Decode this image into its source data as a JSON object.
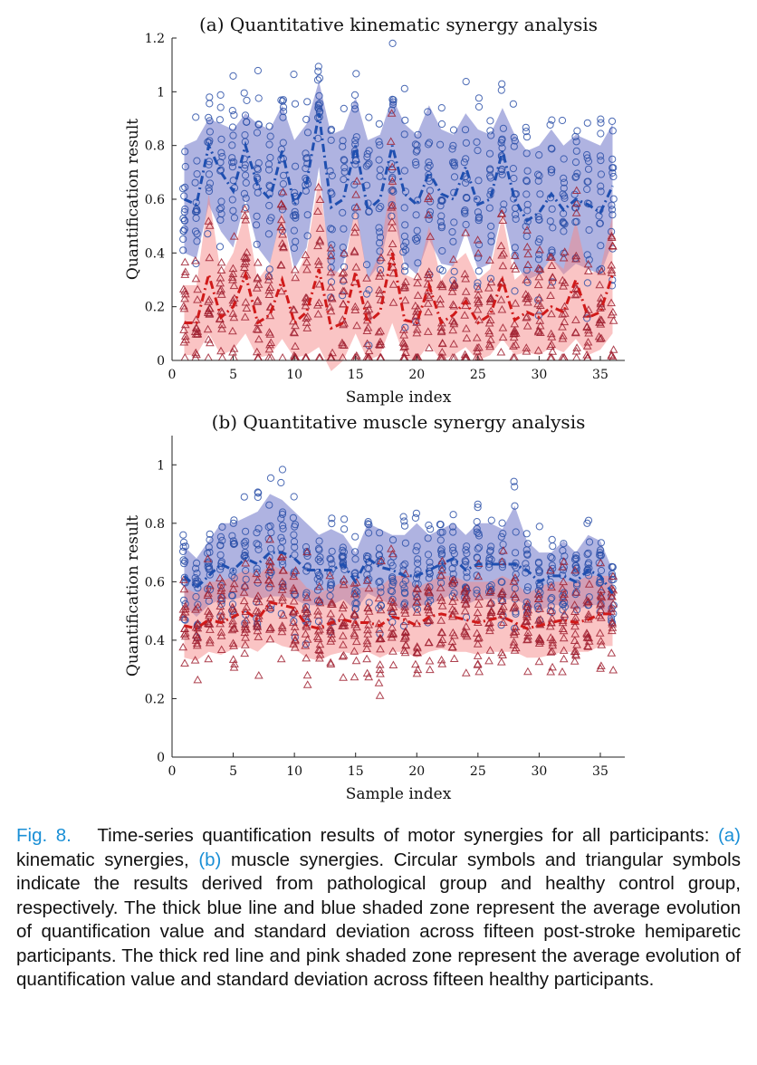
{
  "chart_data": [
    {
      "type": "scatter",
      "panel": "(a)",
      "title": "(a) Quantitative kinematic synergy analysis",
      "xlabel": "Sample index",
      "ylabel": "Quantification result",
      "xlim": [
        0,
        37
      ],
      "ylim": [
        0,
        1.2
      ],
      "xticks": [
        0,
        5,
        10,
        15,
        20,
        25,
        30,
        35
      ],
      "yticks": [
        0,
        0.2,
        0.4,
        0.6,
        0.8,
        1,
        1.2
      ],
      "ytick_labels": [
        "0",
        "0.2",
        "0.4",
        "0.6",
        "0.8",
        "1",
        "1.2"
      ],
      "x": [
        1,
        2,
        3,
        4,
        5,
        6,
        7,
        8,
        9,
        10,
        11,
        12,
        13,
        14,
        15,
        16,
        17,
        18,
        19,
        20,
        21,
        22,
        23,
        24,
        25,
        26,
        27,
        28,
        29,
        30,
        31,
        32,
        33,
        34,
        35,
        36
      ],
      "series": [
        {
          "marker": "circle",
          "color": "#2b50a8",
          "band_color": "#6e74c8",
          "mean": [
            0.6,
            0.58,
            0.8,
            0.7,
            0.63,
            0.8,
            0.65,
            0.6,
            0.78,
            0.58,
            0.66,
            0.92,
            0.57,
            0.6,
            0.8,
            0.56,
            0.6,
            0.8,
            0.62,
            0.58,
            0.7,
            0.62,
            0.6,
            0.72,
            0.58,
            0.6,
            0.78,
            0.6,
            0.52,
            0.55,
            0.62,
            0.56,
            0.6,
            0.58,
            0.55,
            0.65
          ],
          "std_lower": [
            0.4,
            0.38,
            0.58,
            0.48,
            0.42,
            0.6,
            0.42,
            0.36,
            0.55,
            0.34,
            0.42,
            0.72,
            0.3,
            0.36,
            0.56,
            0.3,
            0.36,
            0.56,
            0.36,
            0.32,
            0.45,
            0.36,
            0.35,
            0.48,
            0.34,
            0.36,
            0.56,
            0.36,
            0.3,
            0.32,
            0.38,
            0.32,
            0.36,
            0.34,
            0.32,
            0.44
          ],
          "std_upper": [
            0.8,
            0.82,
            0.9,
            0.88,
            0.86,
            0.92,
            0.88,
            0.86,
            0.95,
            0.82,
            0.88,
            1.04,
            0.84,
            0.86,
            0.98,
            0.82,
            0.84,
            0.98,
            0.88,
            0.84,
            0.95,
            0.86,
            0.84,
            0.92,
            0.86,
            0.84,
            0.94,
            0.84,
            0.78,
            0.8,
            0.86,
            0.8,
            0.84,
            0.82,
            0.8,
            0.88
          ]
        },
        {
          "marker": "triangle",
          "color": "#a02030",
          "band_color": "#f58a8a",
          "mean": [
            0.14,
            0.14,
            0.32,
            0.16,
            0.2,
            0.32,
            0.14,
            0.17,
            0.3,
            0.14,
            0.18,
            0.34,
            0.12,
            0.14,
            0.33,
            0.14,
            0.18,
            0.4,
            0.15,
            0.14,
            0.28,
            0.14,
            0.17,
            0.22,
            0.14,
            0.17,
            0.3,
            0.15,
            0.18,
            0.16,
            0.2,
            0.18,
            0.3,
            0.16,
            0.18,
            0.32
          ],
          "std_lower": [
            0.02,
            0.02,
            0.1,
            0.02,
            0.04,
            0.1,
            0.01,
            0.02,
            0.08,
            0.01,
            0.02,
            0.05,
            -0.04,
            0.0,
            0.1,
            0.0,
            0.02,
            0.14,
            0.01,
            0.0,
            0.06,
            0.0,
            0.02,
            0.05,
            0.0,
            0.02,
            0.08,
            0.02,
            0.03,
            0.02,
            0.05,
            0.03,
            0.08,
            0.02,
            0.04,
            0.1
          ],
          "std_upper": [
            0.28,
            0.28,
            0.62,
            0.32,
            0.4,
            0.56,
            0.3,
            0.36,
            0.56,
            0.3,
            0.4,
            0.68,
            0.34,
            0.32,
            0.58,
            0.3,
            0.4,
            0.7,
            0.32,
            0.3,
            0.5,
            0.3,
            0.36,
            0.4,
            0.3,
            0.34,
            0.54,
            0.3,
            0.34,
            0.32,
            0.38,
            0.34,
            0.52,
            0.32,
            0.34,
            0.54
          ]
        }
      ]
    },
    {
      "type": "scatter",
      "panel": "(b)",
      "title": "(b) Quantitative muscle synergy analysis",
      "xlabel": "Sample index",
      "ylabel": "Quantification result",
      "xlim": [
        0,
        37
      ],
      "ylim": [
        0,
        1.1
      ],
      "xticks": [
        0,
        5,
        10,
        15,
        20,
        25,
        30,
        35
      ],
      "yticks": [
        0,
        0.2,
        0.4,
        0.6,
        0.8,
        1
      ],
      "ytick_labels": [
        "0",
        "0.2",
        "0.4",
        "0.6",
        "0.8",
        "1"
      ],
      "x": [
        1,
        2,
        3,
        4,
        5,
        6,
        7,
        8,
        9,
        10,
        11,
        12,
        13,
        14,
        15,
        16,
        17,
        18,
        19,
        20,
        21,
        22,
        23,
        24,
        25,
        26,
        27,
        28,
        29,
        30,
        31,
        32,
        33,
        34,
        35,
        36
      ],
      "series": [
        {
          "marker": "circle",
          "color": "#2b50a8",
          "band_color": "#6e74c8",
          "mean": [
            0.62,
            0.58,
            0.62,
            0.66,
            0.64,
            0.68,
            0.66,
            0.7,
            0.7,
            0.68,
            0.64,
            0.64,
            0.64,
            0.66,
            0.6,
            0.68,
            0.65,
            0.64,
            0.62,
            0.62,
            0.64,
            0.66,
            0.68,
            0.64,
            0.66,
            0.66,
            0.66,
            0.66,
            0.64,
            0.6,
            0.62,
            0.62,
            0.6,
            0.64,
            0.62,
            0.56
          ],
          "std_lower": [
            0.52,
            0.48,
            0.52,
            0.54,
            0.54,
            0.55,
            0.54,
            0.55,
            0.55,
            0.54,
            0.52,
            0.52,
            0.52,
            0.54,
            0.5,
            0.56,
            0.54,
            0.52,
            0.5,
            0.52,
            0.52,
            0.54,
            0.56,
            0.52,
            0.54,
            0.54,
            0.54,
            0.54,
            0.52,
            0.5,
            0.52,
            0.52,
            0.5,
            0.52,
            0.52,
            0.46
          ],
          "std_upper": [
            0.72,
            0.68,
            0.74,
            0.8,
            0.8,
            0.82,
            0.84,
            0.9,
            0.88,
            0.84,
            0.8,
            0.76,
            0.78,
            0.76,
            0.7,
            0.8,
            0.78,
            0.76,
            0.76,
            0.8,
            0.76,
            0.78,
            0.8,
            0.76,
            0.8,
            0.8,
            0.78,
            0.86,
            0.74,
            0.7,
            0.7,
            0.74,
            0.7,
            0.76,
            0.74,
            0.64
          ]
        },
        {
          "marker": "triangle",
          "color": "#a02030",
          "band_color": "#f58a8a",
          "mean": [
            0.45,
            0.44,
            0.47,
            0.46,
            0.48,
            0.5,
            0.47,
            0.53,
            0.52,
            0.51,
            0.45,
            0.44,
            0.46,
            0.47,
            0.46,
            0.46,
            0.45,
            0.48,
            0.47,
            0.45,
            0.48,
            0.49,
            0.48,
            0.47,
            0.46,
            0.47,
            0.48,
            0.46,
            0.44,
            0.45,
            0.46,
            0.47,
            0.46,
            0.47,
            0.49,
            0.49
          ],
          "std_lower": [
            0.34,
            0.33,
            0.36,
            0.35,
            0.37,
            0.38,
            0.36,
            0.4,
            0.38,
            0.37,
            0.34,
            0.33,
            0.35,
            0.36,
            0.35,
            0.36,
            0.34,
            0.36,
            0.36,
            0.34,
            0.36,
            0.37,
            0.36,
            0.36,
            0.35,
            0.36,
            0.36,
            0.36,
            0.34,
            0.34,
            0.35,
            0.36,
            0.36,
            0.36,
            0.38,
            0.38
          ],
          "std_upper": [
            0.58,
            0.56,
            0.6,
            0.6,
            0.62,
            0.64,
            0.62,
            0.66,
            0.64,
            0.63,
            0.58,
            0.56,
            0.58,
            0.6,
            0.58,
            0.58,
            0.58,
            0.62,
            0.62,
            0.58,
            0.6,
            0.62,
            0.62,
            0.6,
            0.6,
            0.6,
            0.62,
            0.6,
            0.56,
            0.58,
            0.6,
            0.6,
            0.6,
            0.62,
            0.62,
            0.62
          ]
        }
      ]
    }
  ],
  "caption": {
    "label": "Fig. 8.",
    "part1": "Time-series quantification results of motor synergies for all participants: ",
    "ref_a": "(a)",
    "part2": " kinematic synergies, ",
    "ref_b": "(b)",
    "part3": " muscle synergies. Circular symbols and triangular symbols indicate the results derived from pathological group and healthy control group, respectively. The thick blue line and blue shaded zone represent the average evolution of quantification value and standard deviation across fifteen post-stroke hemiparetic participants. The thick red line and pink shaded zone represent the average evolution of quantification value and standard deviation across fifteen healthy participants."
  }
}
